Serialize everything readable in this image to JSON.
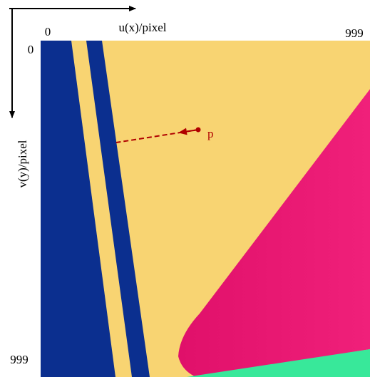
{
  "axes": {
    "u_label": "u(x)/pixel",
    "u_start": "0",
    "u_end": "999",
    "v_label": "v(y)/pixel",
    "v_start": "0",
    "v_end": "999"
  },
  "point": {
    "label": "p"
  }
}
